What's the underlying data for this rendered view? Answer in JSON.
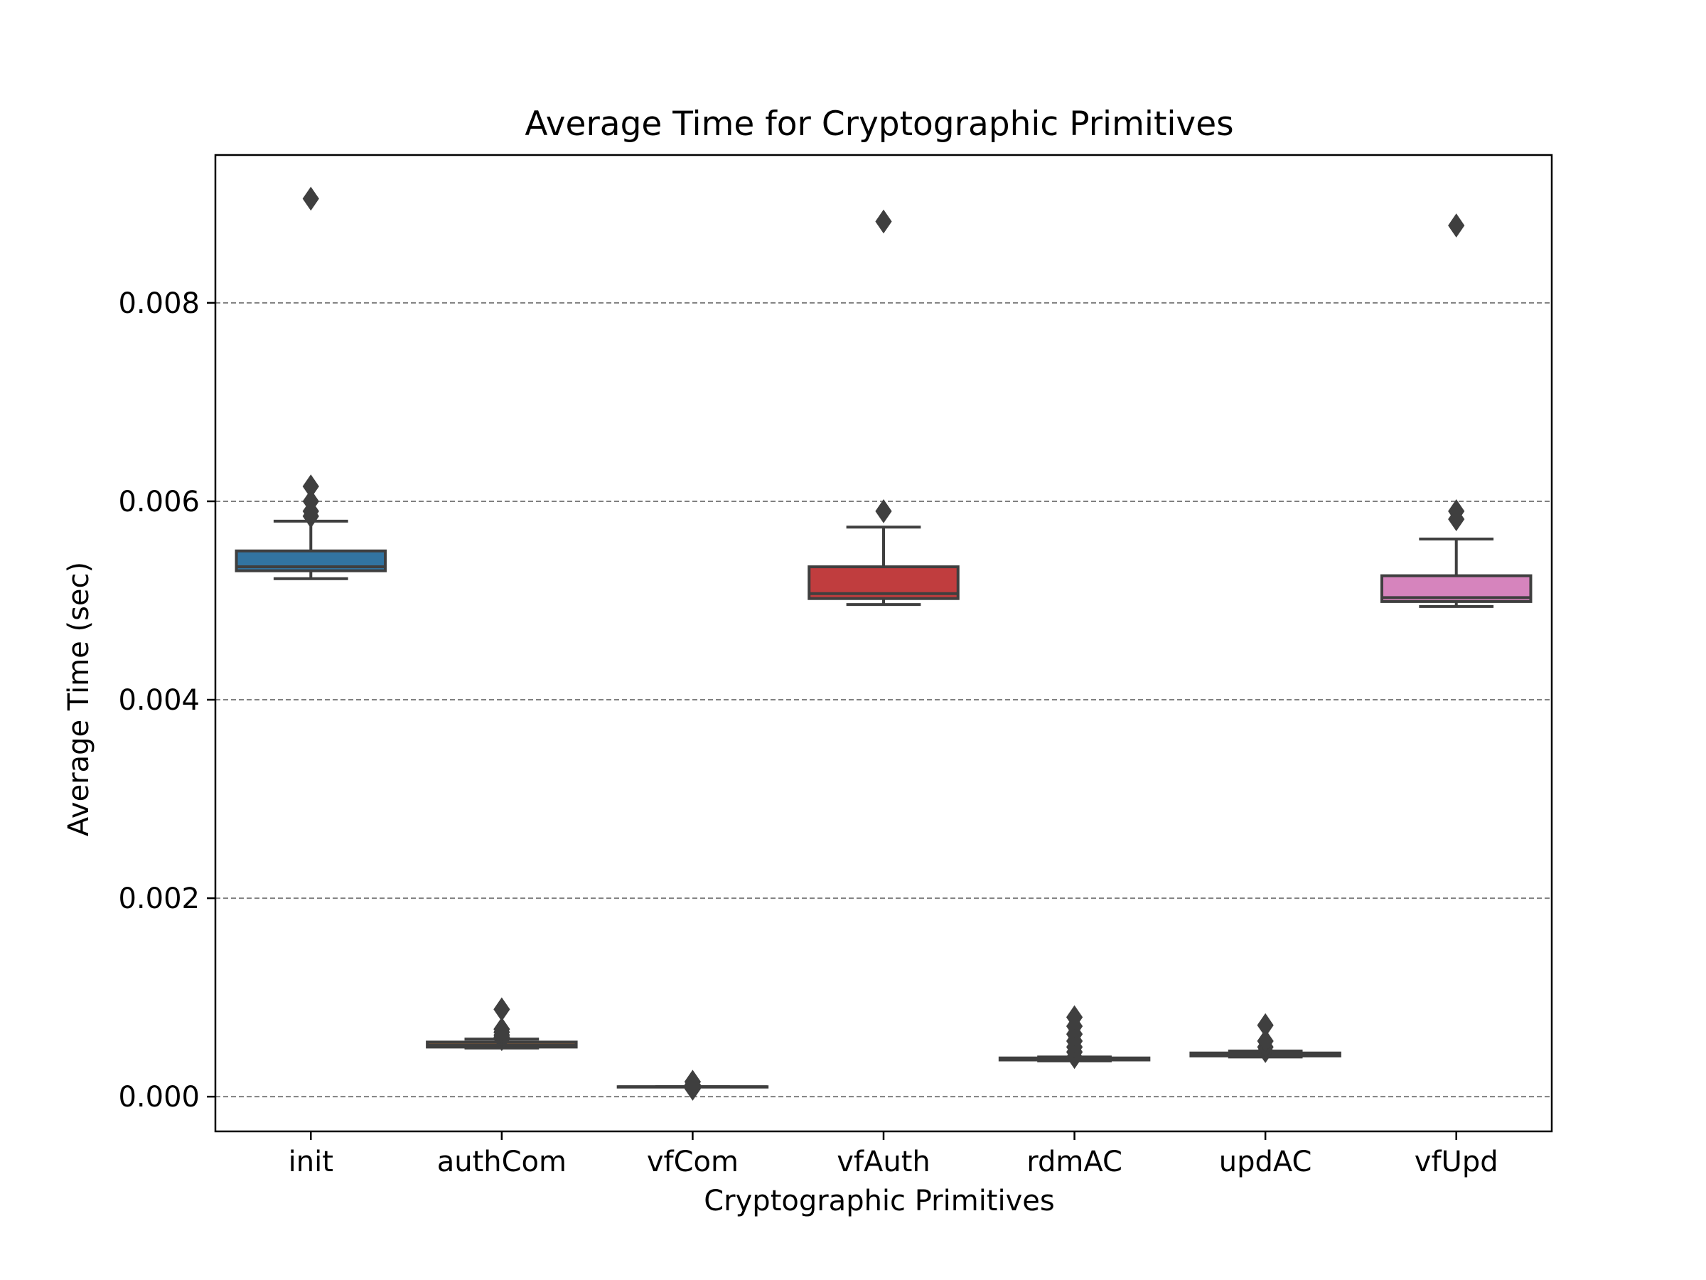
{
  "chart_data": {
    "type": "box",
    "title": "Average Time for Cryptographic Primitives",
    "xlabel": "Cryptographic Primitives",
    "ylabel": "Average Time (sec)",
    "ylim": [
      -0.00035,
      0.00949
    ],
    "yticks": [
      0.0,
      0.002,
      0.004,
      0.006,
      0.008
    ],
    "ytick_labels": [
      "0.000",
      "0.002",
      "0.004",
      "0.006",
      "0.008"
    ],
    "grid": "y-dashed",
    "categories": [
      "init",
      "authCom",
      "vfCom",
      "vfAuth",
      "rdmAC",
      "updAC",
      "vfUpd"
    ],
    "boxes": [
      {
        "name": "init",
        "color": "#3274a1",
        "whislo": 0.00522,
        "q1": 0.0053,
        "med": 0.00534,
        "q3": 0.0055,
        "whishi": 0.0058,
        "fliers": [
          0.00585,
          0.0059,
          0.006,
          0.00615,
          0.00905
        ]
      },
      {
        "name": "authCom",
        "color": "#e1812c",
        "whislo": 0.00049,
        "q1": 0.0005,
        "med": 0.00052,
        "q3": 0.00055,
        "whishi": 0.00058,
        "fliers": [
          0.00058,
          0.0006,
          0.00062,
          0.00065,
          0.00068,
          0.00088
        ]
      },
      {
        "name": "vfCom",
        "color": "#3a923a",
        "whislo": 0.0001,
        "q1": 0.0001,
        "med": 0.0001,
        "q3": 0.0001,
        "whishi": 0.0001,
        "fliers": [
          8e-05,
          0.00012,
          0.00015
        ]
      },
      {
        "name": "vfAuth",
        "color": "#c03d3e",
        "whislo": 0.00496,
        "q1": 0.00502,
        "med": 0.00507,
        "q3": 0.00534,
        "whishi": 0.00574,
        "fliers": [
          0.0059,
          0.00882
        ]
      },
      {
        "name": "rdmAC",
        "color": "#9372b2",
        "whislo": 0.00036,
        "q1": 0.00037,
        "med": 0.00037,
        "q3": 0.00039,
        "whishi": 0.0004,
        "fliers": [
          0.0004,
          0.00045,
          0.0005,
          0.00056,
          0.00063,
          0.00071,
          0.0008
        ]
      },
      {
        "name": "updAC",
        "color": "#845b53",
        "whislo": 0.0004,
        "q1": 0.00041,
        "med": 0.00042,
        "q3": 0.00044,
        "whishi": 0.00046,
        "fliers": [
          0.00046,
          0.0005,
          0.00056,
          0.00072
        ]
      },
      {
        "name": "vfUpd",
        "color": "#d684bd",
        "whislo": 0.00494,
        "q1": 0.00499,
        "med": 0.00503,
        "q3": 0.00525,
        "whishi": 0.00562,
        "fliers": [
          0.00582,
          0.0059,
          0.00878
        ]
      }
    ]
  }
}
